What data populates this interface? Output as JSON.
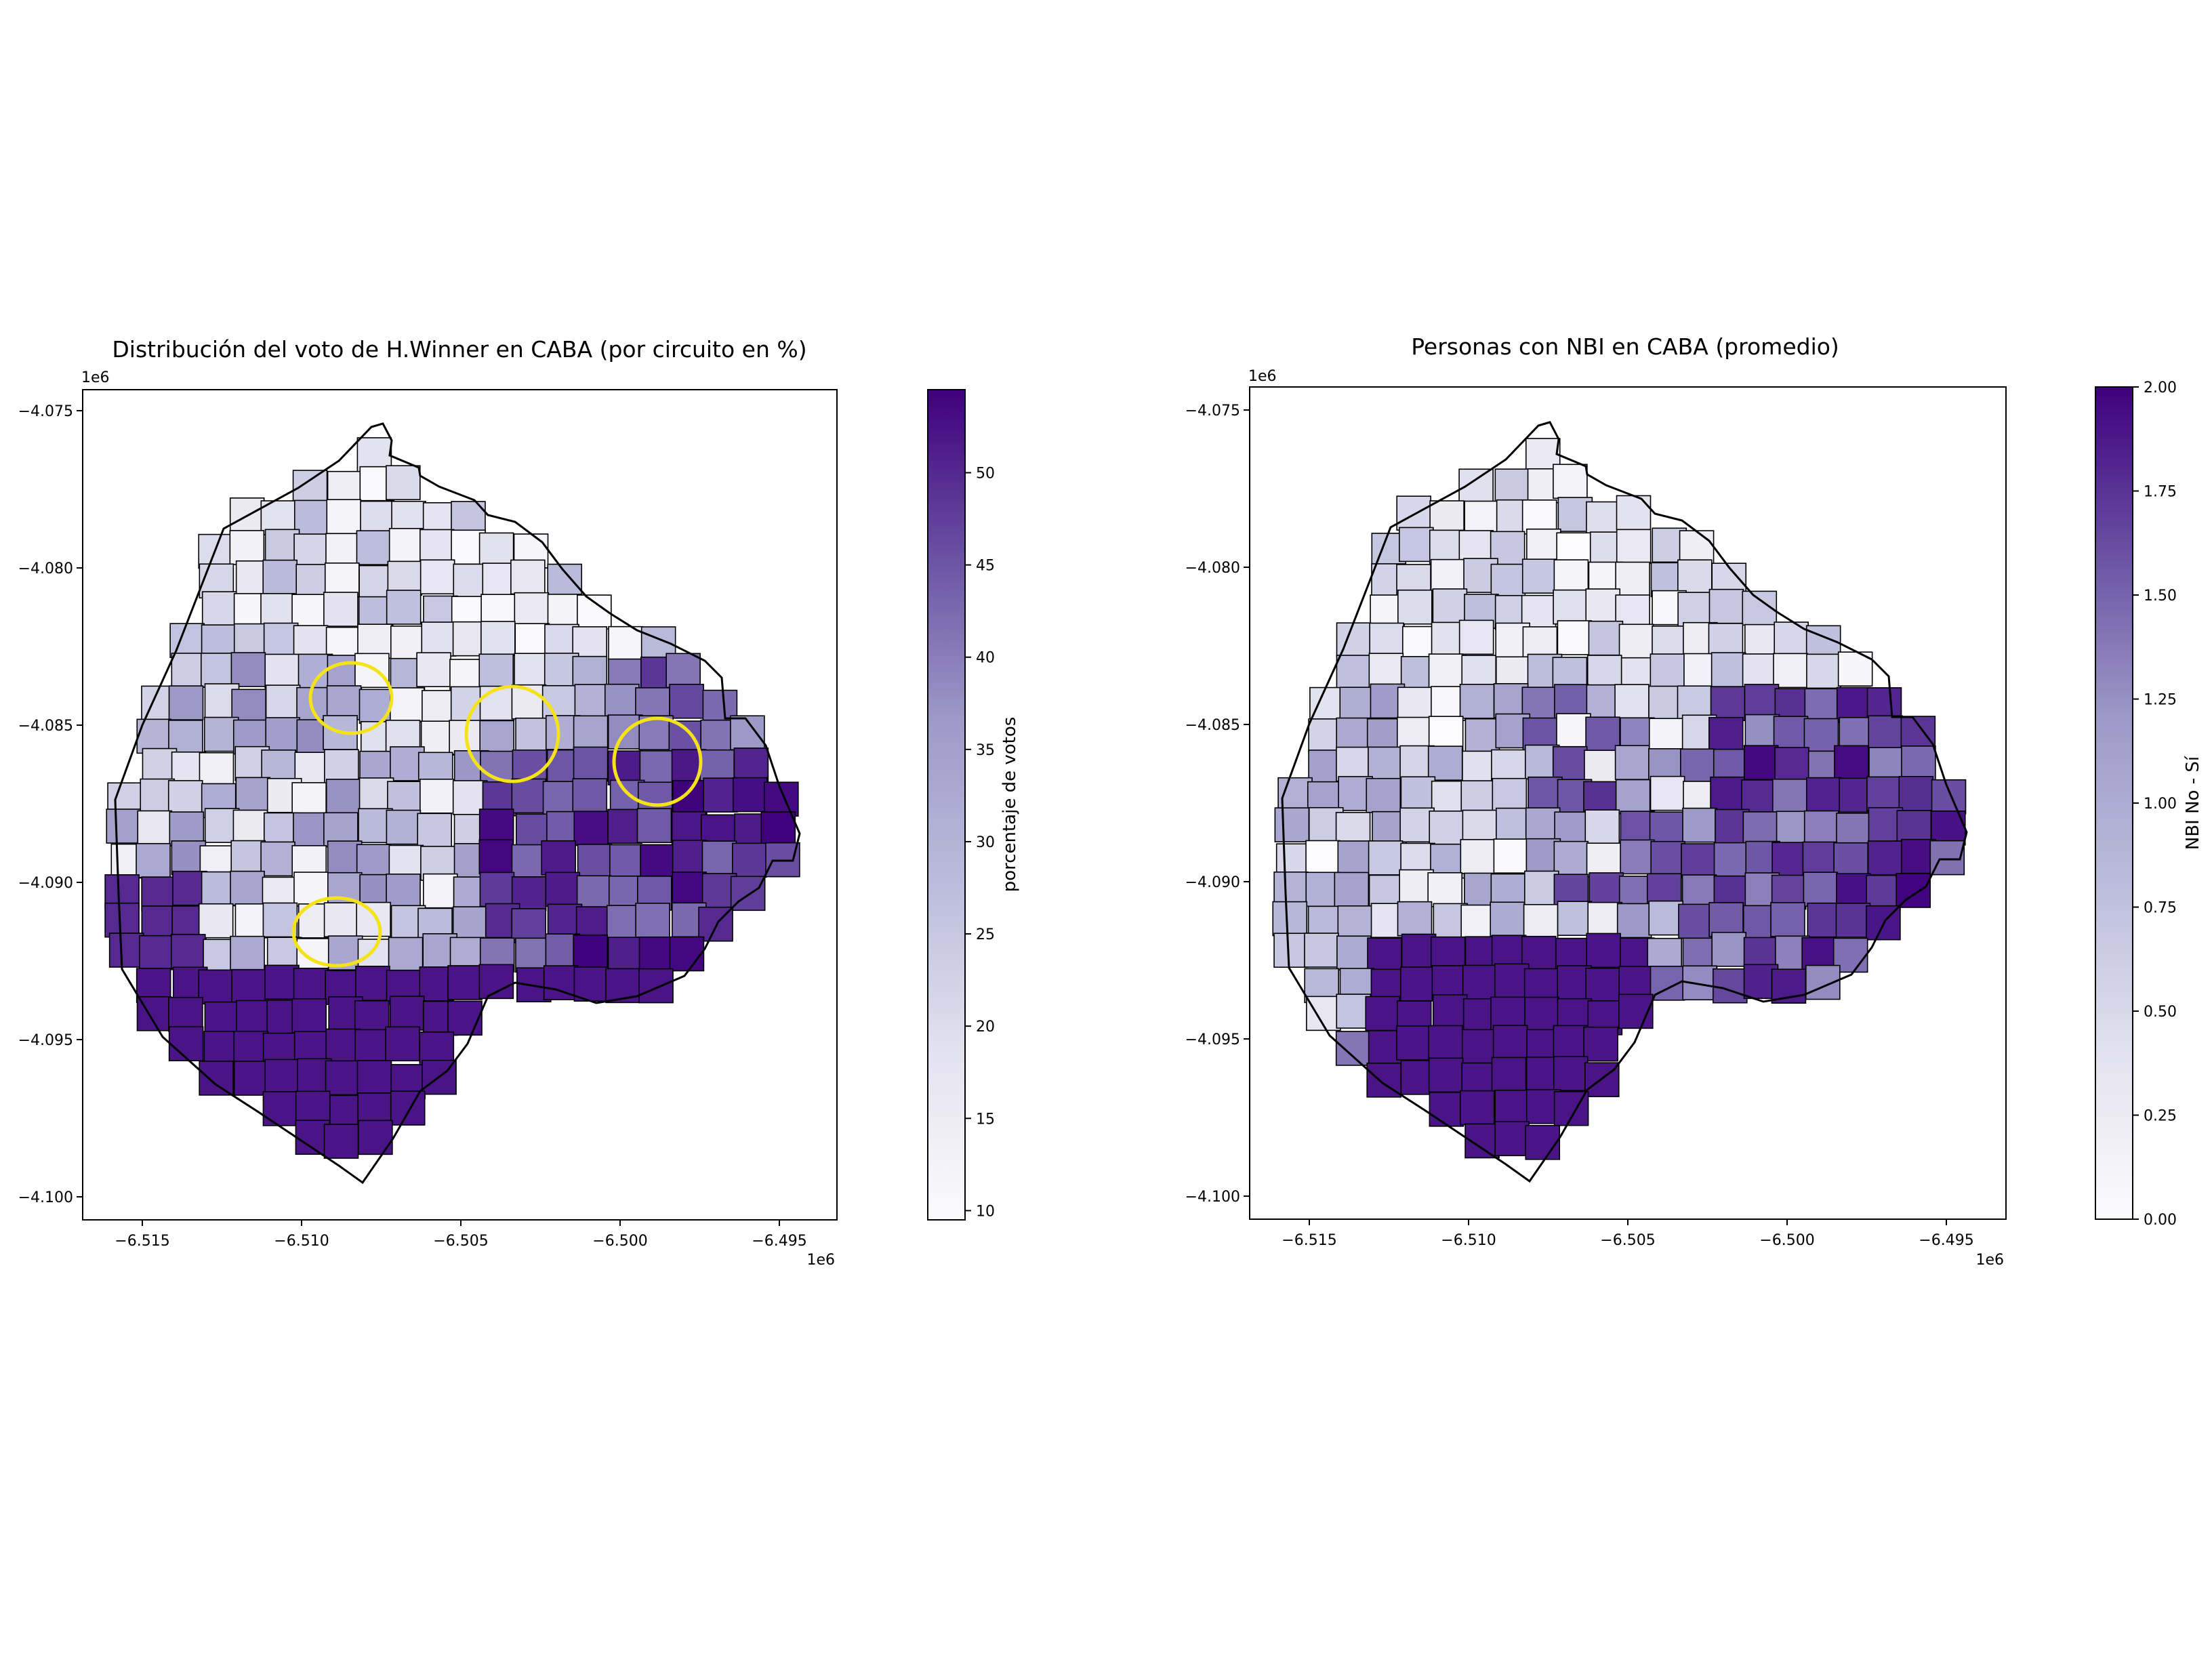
{
  "figure": {
    "background": "#ffffff"
  },
  "colormap": {
    "name": "Purples",
    "low": "#fcfbfd",
    "high": "#3f007d"
  },
  "left_map": {
    "title": "Distribución del voto de H.Winner en CABA (por circuito en %)",
    "x_ticks": [
      "−6.515",
      "−6.510",
      "−6.505",
      "−6.500",
      "−6.495"
    ],
    "y_ticks": [
      "−4.075",
      "−4.080",
      "−4.085",
      "−4.090",
      "−4.095",
      "−4.100"
    ],
    "x_offset": "1e6",
    "y_offset": "1e6",
    "colorbar": {
      "label": "porcentaje de votos",
      "ticks": [
        "10",
        "15",
        "20",
        "25",
        "30",
        "35",
        "40",
        "45",
        "50"
      ],
      "range": [
        9.5,
        54.5
      ]
    },
    "annotations": {
      "count": 4,
      "shape": "circle",
      "color": "#f5e31a"
    }
  },
  "right_map": {
    "title": "Personas con NBI en CABA (promedio)",
    "x_ticks": [
      "−6.515",
      "−6.510",
      "−6.505",
      "−6.500",
      "−6.495"
    ],
    "y_ticks": [
      "−4.075",
      "−4.080",
      "−4.085",
      "−4.090",
      "−4.095",
      "−4.100"
    ],
    "x_offset": "1e6",
    "y_offset": "1e6",
    "colorbar": {
      "label": "NBI No - Sí",
      "ticks": [
        "0.00",
        "0.25",
        "0.50",
        "0.75",
        "1.00",
        "1.25",
        "1.50",
        "1.75",
        "2.00"
      ],
      "range": [
        0,
        2
      ]
    }
  }
}
